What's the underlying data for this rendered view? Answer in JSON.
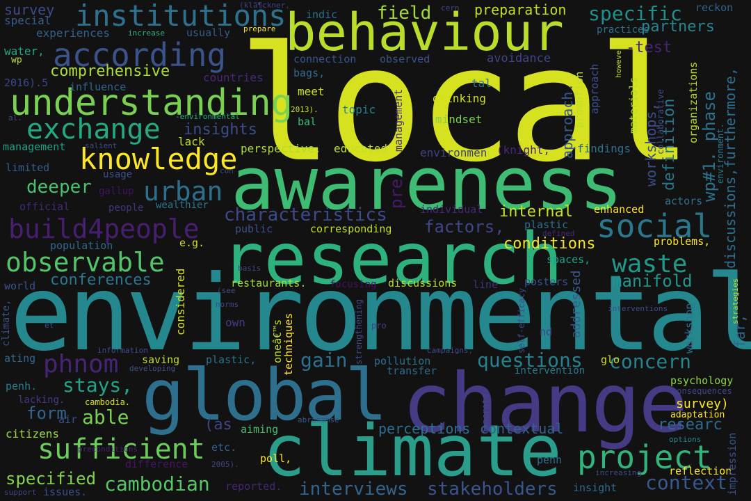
{
  "palette": {
    "background": "#121212"
  },
  "words": [
    {
      "text": "local",
      "color": "#d6e21f"
    },
    {
      "text": "environmental",
      "color": "#24888e"
    },
    {
      "text": "awareness",
      "color": "#3fbc73"
    },
    {
      "text": "research",
      "color": "#2db27d"
    },
    {
      "text": "change",
      "color": "#443b84"
    },
    {
      "text": "climate",
      "color": "#2a9e8a"
    },
    {
      "text": "global",
      "color": "#2f6f8e"
    },
    {
      "text": "behaviour",
      "color": "#b8de29"
    },
    {
      "text": "understanding",
      "color": "#7ad151"
    },
    {
      "text": "according",
      "color": "#3b528b"
    },
    {
      "text": "institutions",
      "color": "#2c728e"
    },
    {
      "text": "exchange",
      "color": "#23a983"
    },
    {
      "text": "knowledge",
      "color": "#fde725"
    },
    {
      "text": "urban",
      "color": "#2d708e"
    },
    {
      "text": "build4people",
      "color": "#481f70"
    },
    {
      "text": "social",
      "color": "#2a788e"
    },
    {
      "text": "observable",
      "color": "#52c569"
    },
    {
      "text": "project",
      "color": "#31b57b"
    },
    {
      "text": "sufficient",
      "color": "#6ccd5a"
    },
    {
      "text": "phnom",
      "color": "#482475"
    },
    {
      "text": "comprehensive",
      "color": "#addc30"
    },
    {
      "text": "specific",
      "color": "#218f8d"
    },
    {
      "text": "field",
      "color": "#a5db36"
    },
    {
      "text": "preparation",
      "color": "#c2df23"
    },
    {
      "text": "survey",
      "color": "#3e4a89"
    },
    {
      "text": "characteristics",
      "color": "#3e4989"
    },
    {
      "text": "waste",
      "color": "#1f9a8a"
    },
    {
      "text": "manifold",
      "color": "#1f958b"
    },
    {
      "text": "concern",
      "color": "#25848e"
    },
    {
      "text": "questions",
      "color": "#26818e"
    },
    {
      "text": "gain",
      "color": "#2c718e"
    },
    {
      "text": "stays,",
      "color": "#20a386"
    },
    {
      "text": "able",
      "color": "#79d151"
    },
    {
      "text": "cambodian",
      "color": "#56c667"
    },
    {
      "text": "interviews",
      "color": "#32658e"
    },
    {
      "text": "stakeholders",
      "color": "#3a548c"
    },
    {
      "text": "context",
      "color": "#38598c"
    },
    {
      "text": "specified",
      "color": "#84d44b"
    },
    {
      "text": "conferences",
      "color": "#2b758e"
    },
    {
      "text": "factors,",
      "color": "#404588"
    },
    {
      "text": "insights",
      "color": "#3d4d8a"
    },
    {
      "text": "deeper",
      "color": "#4ac16d"
    },
    {
      "text": "internal",
      "color": "#c8e020"
    },
    {
      "text": "conditions",
      "color": "#f1e51d"
    },
    {
      "text": "experiences",
      "color": "#33638d"
    },
    {
      "text": "special",
      "color": "#355f8d"
    },
    {
      "text": "water,",
      "color": "#22a884"
    },
    {
      "text": "wp",
      "color": "#bddf26"
    },
    {
      "text": "2016).5",
      "color": "#3f4889"
    },
    {
      "text": "influence",
      "color": "#33638d"
    },
    {
      "text": "management",
      "color": "#1fa187"
    },
    {
      "text": "limited",
      "color": "#365d8d"
    },
    {
      "text": "usage",
      "color": "#3a538b"
    },
    {
      "text": "gallup",
      "color": "#471063"
    },
    {
      "text": "official",
      "color": "#482878"
    },
    {
      "text": "people",
      "color": "#46337e"
    },
    {
      "text": "wealthier",
      "color": "#2a788e"
    },
    {
      "text": "public",
      "color": "#3b528b"
    },
    {
      "text": "corresponding",
      "color": "#c2df23"
    },
    {
      "text": "population",
      "color": "#31688e"
    },
    {
      "text": "world",
      "color": "#3b528b"
    },
    {
      "text": "restaurants.",
      "color": "#a0da39"
    },
    {
      "text": "discussions",
      "color": "#b5de2b"
    },
    {
      "text": "line",
      "color": "#46307e"
    },
    {
      "text": "posters",
      "color": "#3b518b"
    },
    {
      "text": "e.g.",
      "color": "#d2e21b"
    },
    {
      "text": "problems,",
      "color": "#fde725"
    },
    {
      "text": "spaces,",
      "color": "#1fa088"
    },
    {
      "text": "plastic",
      "color": "#2c718e"
    },
    {
      "text": "plastic,",
      "color": "#2c728e"
    },
    {
      "text": "enhanced",
      "color": "#fde725"
    },
    {
      "text": "actors",
      "color": "#2d708e"
    },
    {
      "text": "psychology",
      "color": "#8ed645"
    },
    {
      "text": "consequences",
      "color": "#3f4889"
    },
    {
      "text": "survey)",
      "color": "#fde725"
    },
    {
      "text": "adaptation",
      "color": "#fde725"
    },
    {
      "text": "reflection",
      "color": "#fde725"
    },
    {
      "text": "insight",
      "color": "#2e6e8e"
    },
    {
      "text": "penh",
      "color": "#306a8e"
    },
    {
      "text": "perceptions",
      "color": "#2c718e"
    },
    {
      "text": "contextual",
      "color": "#34618d"
    },
    {
      "text": "aiming",
      "color": "#46c06f"
    },
    {
      "text": "poll,",
      "color": "#fde725"
    },
    {
      "text": "etc.",
      "color": "#33638d"
    },
    {
      "text": "difference",
      "color": "#471365"
    },
    {
      "text": "citizens",
      "color": "#9bd93c"
    },
    {
      "text": "form",
      "color": "#32658e"
    },
    {
      "text": "air",
      "color": "#3b528b"
    },
    {
      "text": "penh.",
      "color": "#287c8e"
    },
    {
      "text": "lacking.",
      "color": "#443983"
    },
    {
      "text": "cambodia.",
      "color": "#d8e219"
    },
    {
      "text": "ating",
      "color": "#31688e"
    },
    {
      "text": "saving",
      "color": "#c0df25"
    },
    {
      "text": "developing",
      "color": "#3b528b"
    },
    {
      "text": "information",
      "color": "#3e4c8a"
    },
    {
      "text": "own",
      "color": "#443983"
    },
    {
      "text": "et",
      "color": "#3d4e8a"
    },
    {
      "text": "pro",
      "color": "#424086"
    },
    {
      "text": "glo",
      "color": "#cae11f"
    },
    {
      "text": "intervention",
      "color": "#29798e"
    },
    {
      "text": "pollution",
      "color": "#2d718e"
    },
    {
      "text": "transfer",
      "color": "#31688e"
    },
    {
      "text": "campaigns,",
      "color": "#3e4a89"
    },
    {
      "text": "(as",
      "color": "#414487"
    },
    {
      "text": "reported.",
      "color": "#482575"
    },
    {
      "text": "issues.",
      "color": "#3b518b"
    },
    {
      "text": "2005).",
      "color": "#414287"
    },
    {
      "text": "increasing",
      "color": "#3e4a89"
    },
    {
      "text": "support",
      "color": "#3e4989"
    },
    {
      "text": "preconditions",
      "color": "#482173"
    },
    {
      "text": "abrahamse",
      "color": "#38598c"
    },
    {
      "text": "options",
      "color": "#24868e"
    },
    {
      "text": "researc",
      "color": "#30698e"
    },
    {
      "text": "institutions",
      "color": "#2c728e"
    },
    {
      "text": "indic",
      "color": "#2d708e"
    },
    {
      "text": "cern",
      "color": "#3e4c8a"
    },
    {
      "text": "reckon",
      "color": "#33638d"
    },
    {
      "text": "(klã¶ckner,",
      "color": "#424086"
    },
    {
      "text": "usually",
      "color": "#38598c"
    },
    {
      "text": "prepare",
      "color": "#fde725"
    },
    {
      "text": "increase",
      "color": "#2db27d"
    },
    {
      "text": "practices",
      "color": "#2c728e"
    },
    {
      "text": "partners",
      "color": "#25858e"
    },
    {
      "text": "-test",
      "color": "#482475"
    },
    {
      "text": "connection",
      "color": "#3a548c"
    },
    {
      "text": "observed",
      "color": "#3b528b"
    },
    {
      "text": "avoidance",
      "color": "#3f4788"
    },
    {
      "text": "bags,",
      "color": "#31688e"
    },
    {
      "text": "countries",
      "color": "#482878"
    },
    {
      "text": "measures",
      "color": "#482878"
    },
    {
      "text": "meet",
      "color": "#cde11d"
    },
    {
      "text": "tal",
      "color": "#2a788e"
    },
    {
      "text": "drinking",
      "color": "#d0e11c"
    },
    {
      "text": "topic",
      "color": "#25838e"
    },
    {
      "text": "mindset",
      "color": "#7fd34e"
    },
    {
      "text": "2013).",
      "color": "#cde11d"
    },
    {
      "text": "bal",
      "color": "#3aba76"
    },
    {
      "text": "-environmental",
      "color": "#25ac82"
    },
    {
      "text": "al.",
      "color": "#3b528b"
    },
    {
      "text": "lack",
      "color": "#c2df23"
    },
    {
      "text": "salient",
      "color": "#3e4a89"
    },
    {
      "text": "perspective.",
      "color": "#addc30"
    },
    {
      "text": "educated",
      "color": "#c0df25"
    },
    {
      "text": "environmen",
      "color": "#424186"
    },
    {
      "text": "(knight,",
      "color": "#482878"
    },
    {
      "text": "findings",
      "color": "#2e6f8e"
    },
    {
      "text": "con",
      "color": "#3e4989"
    },
    {
      "text": "individual",
      "color": "#482878"
    },
    {
      "text": "defined",
      "color": "#482878"
    },
    {
      "text": "basis",
      "color": "#3e4a89"
    },
    {
      "text": "(see",
      "color": "#3e4a89"
    },
    {
      "text": "norms",
      "color": "#3e4a89"
    },
    {
      "text": "focusing",
      "color": "#471063"
    },
    {
      "text": "interventions",
      "color": "#3e4a89"
    },
    {
      "text": "nd",
      "color": "#414487"
    },
    {
      "text": "wp#1. phase",
      "color": "#2c738e"
    },
    {
      "text": "definition",
      "color": "#2a768e"
    },
    {
      "text": "workshops,",
      "color": "#3e4c8a"
    },
    {
      "text": "approach.",
      "color": "#38588c"
    },
    {
      "text": "discussions,furthermore,",
      "color": "#2e6e8e"
    },
    {
      "text": "pre",
      "color": "#481a6c"
    },
    {
      "text": "promotion",
      "color": "#c0df25"
    },
    {
      "text": "approach",
      "color": "#3b528b"
    },
    {
      "text": "materials",
      "color": "#b5de2b"
    },
    {
      "text": "collaborative",
      "color": "#3d4e8a"
    },
    {
      "text": "organizations",
      "color": "#b8de29"
    },
    {
      "text": "however",
      "color": "#c2df23"
    },
    {
      "text": "management",
      "color": "#46307e"
    },
    {
      "text": "considered",
      "color": "#d8e219"
    },
    {
      "text": "addressed",
      "color": "#37598c"
    },
    {
      "text": "climate,",
      "color": "#3b528b"
    },
    {
      "text": "workshop",
      "color": "#2e6f8e"
    },
    {
      "text": "strengthening",
      "color": "#3e4a89"
    },
    {
      "text": "oneâ€™s",
      "color": "#c2df23"
    },
    {
      "text": "techniques",
      "color": "#fde725"
    },
    {
      "text": "self-efficacy",
      "color": "#3e4989"
    },
    {
      "text": "concrete",
      "color": "#3e4a89"
    },
    {
      "text": "environment.",
      "color": "#2a788e"
    },
    {
      "text": "impression",
      "color": "#3b528b"
    },
    {
      "text": "far,",
      "color": "#33638d"
    },
    {
      "text": "strategies",
      "color": "#c2df23"
    }
  ]
}
